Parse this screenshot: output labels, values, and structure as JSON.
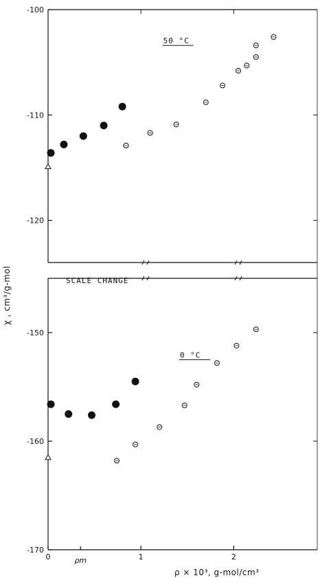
{
  "chart_data": {
    "type": "scatter",
    "xlabel": "ρ × 10³,  g-mol/cm³",
    "ylabel": "χ , cm³/g-mol",
    "xlim": [
      0,
      2.9
    ],
    "x_ticks": [
      "0",
      "1",
      "2"
    ],
    "x_extra_tick": {
      "label": "ρm",
      "x": 0.35
    },
    "panels": [
      {
        "id": "upper",
        "ylim": [
          -124,
          -100
        ],
        "y_ticks": [
          -100,
          -110,
          -120
        ],
        "annotation": "50 °C",
        "series": [
          {
            "marker": "filled",
            "points": [
              [
                0.03,
                -113.6
              ],
              [
                0.17,
                -112.8
              ],
              [
                0.38,
                -112.0
              ],
              [
                0.6,
                -111.0
              ],
              [
                0.8,
                -109.2
              ]
            ]
          },
          {
            "marker": "open",
            "points": [
              [
                0.84,
                -112.9
              ],
              [
                0.84,
                -112.9
              ],
              [
                1.1,
                -111.7
              ],
              [
                1.38,
                -110.9
              ],
              [
                1.7,
                -108.8
              ],
              [
                1.88,
                -107.2
              ],
              [
                2.05,
                -105.8
              ],
              [
                2.14,
                -105.3
              ],
              [
                2.24,
                -104.5
              ],
              [
                2.24,
                -103.4
              ],
              [
                2.43,
                -102.6
              ]
            ]
          },
          {
            "marker": "triangle",
            "points": [
              [
                0.0,
                -114.9
              ]
            ]
          }
        ]
      },
      {
        "id": "lower",
        "ylim": [
          -170,
          -145
        ],
        "y_ticks": [
          -150,
          -160,
          -170
        ],
        "annotation": "0 °C",
        "series": [
          {
            "marker": "filled",
            "points": [
              [
                0.03,
                -156.6
              ],
              [
                0.22,
                -157.5
              ],
              [
                0.47,
                -157.6
              ],
              [
                0.73,
                -156.6
              ],
              [
                0.94,
                -154.5
              ]
            ]
          },
          {
            "marker": "open",
            "points": [
              [
                0.74,
                -161.8
              ],
              [
                0.94,
                -160.3
              ],
              [
                1.2,
                -158.7
              ],
              [
                1.47,
                -156.7
              ],
              [
                1.6,
                -154.8
              ],
              [
                1.82,
                -152.8
              ],
              [
                2.03,
                -151.2
              ],
              [
                2.24,
                -149.7
              ]
            ]
          },
          {
            "marker": "triangle",
            "points": [
              [
                0.0,
                -161.5
              ]
            ]
          }
        ]
      }
    ],
    "scale_change_label": "SCALE CHANGE"
  }
}
